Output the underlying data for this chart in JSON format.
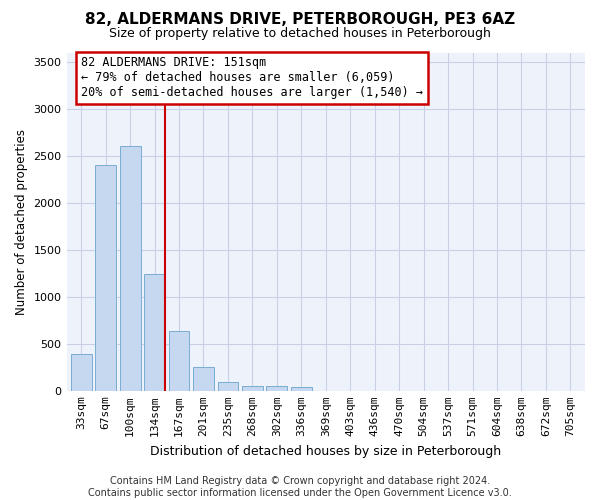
{
  "title": "82, ALDERMANS DRIVE, PETERBOROUGH, PE3 6AZ",
  "subtitle": "Size of property relative to detached houses in Peterborough",
  "xlabel": "Distribution of detached houses by size in Peterborough",
  "ylabel": "Number of detached properties",
  "footer_line1": "Contains HM Land Registry data © Crown copyright and database right 2024.",
  "footer_line2": "Contains public sector information licensed under the Open Government Licence v3.0.",
  "categories": [
    "33sqm",
    "67sqm",
    "100sqm",
    "134sqm",
    "167sqm",
    "201sqm",
    "235sqm",
    "268sqm",
    "302sqm",
    "336sqm",
    "369sqm",
    "403sqm",
    "436sqm",
    "470sqm",
    "504sqm",
    "537sqm",
    "571sqm",
    "604sqm",
    "638sqm",
    "672sqm",
    "705sqm"
  ],
  "values": [
    390,
    2400,
    2600,
    1240,
    640,
    255,
    90,
    55,
    55,
    40,
    0,
    0,
    0,
    0,
    0,
    0,
    0,
    0,
    0,
    0,
    0
  ],
  "bar_color": "#c5d8f0",
  "bar_edge_color": "#7aadd4",
  "ylim": [
    0,
    3600
  ],
  "yticks": [
    0,
    500,
    1000,
    1500,
    2000,
    2500,
    3000,
    3500
  ],
  "vline_x_idx": 3,
  "vline_color": "#cc0000",
  "annotation_line1": "82 ALDERMANS DRIVE: 151sqm",
  "annotation_line2": "← 79% of detached houses are smaller (6,059)",
  "annotation_line3": "20% of semi-detached houses are larger (1,540) →",
  "plot_bg_color": "#eef2fb",
  "grid_color": "#c8d0e8",
  "title_fontsize": 11,
  "subtitle_fontsize": 9,
  "annotation_fontsize": 8.5,
  "ylabel_fontsize": 8.5,
  "xlabel_fontsize": 9,
  "tick_fontsize": 8,
  "footer_fontsize": 7
}
